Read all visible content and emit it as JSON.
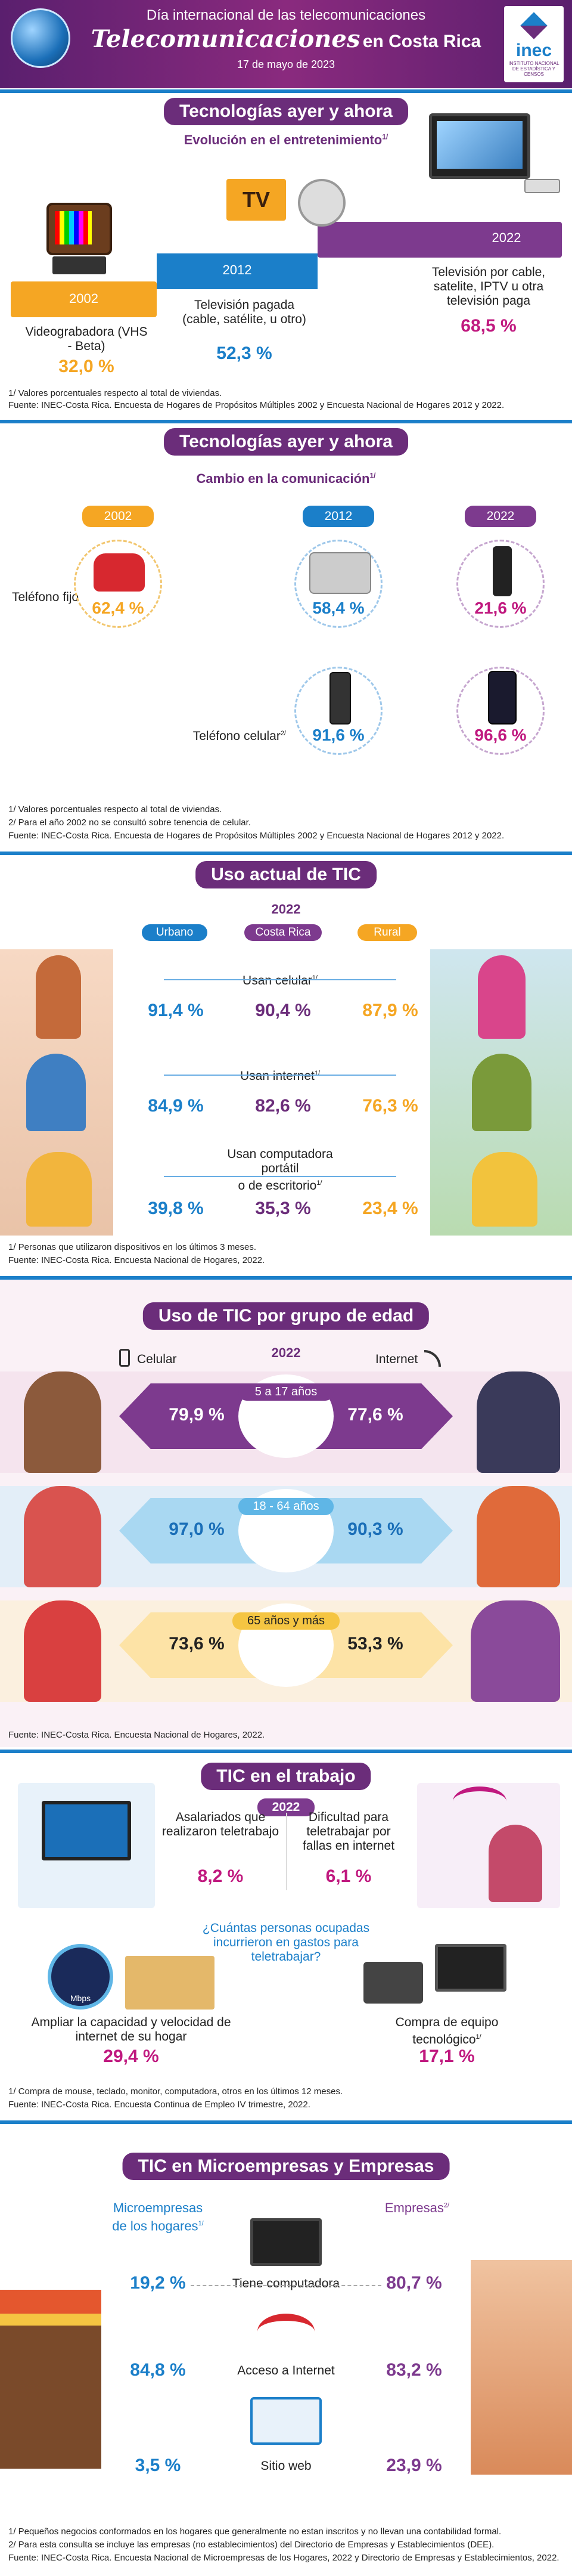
{
  "header": {
    "line1": "Día internacional de las telecomunicaciones",
    "line2": "Telecomunicaciones",
    "line2b": "en Costa Rica",
    "date": "17 de mayo de 2023",
    "logo": "inec",
    "logo_sub": "INSTITUTO NACIONAL DE ESTADÍSTICA Y CENSOS"
  },
  "s1": {
    "title": "Tecnologías ayer y ahora",
    "subtitle": "Evolución en el entretenimiento",
    "sup": "1/",
    "years": [
      "2002",
      "2012",
      "2022"
    ],
    "items": [
      {
        "label": "Videograbadora (VHS - Beta)",
        "value": "32,0 %"
      },
      {
        "label": "Televisión pagada (cable, satélite, u otro)",
        "value": "52,3 %"
      },
      {
        "label": "Televisión por cable, satelite, IPTV u otra televisión paga",
        "value": "68,5 %"
      }
    ],
    "foot1": "1/ Valores porcentuales respecto al total de viviendas.",
    "foot2": "Fuente: INEC-Costa Rica. Encuesta de Hogares de Propósitos Múltiples 2002 y Encuesta Nacional de Hogares 2012 y 2022."
  },
  "s2": {
    "title": "Tecnologías ayer y ahora",
    "subtitle": "Cambio en la comunicación",
    "sup": "1/",
    "years": [
      "2002",
      "2012",
      "2022"
    ],
    "row1_label": "Teléfono fijo",
    "row1": [
      "62,4 %",
      "58,4 %",
      "21,6 %"
    ],
    "row2_label": "Teléfono celular",
    "row2_sup": "2/",
    "row2": [
      "91,6 %",
      "96,6 %"
    ],
    "foot1": "1/ Valores porcentuales respecto al total de viviendas.",
    "foot2": "2/ Para el año 2002 no se consultó sobre tenencia de celular.",
    "foot3": "Fuente: INEC-Costa Rica. Encuesta de Hogares de Propósitos Múltiples 2002 y Encuesta Nacional de Hogares 2012 y 2022."
  },
  "s3": {
    "title": "Uso actual de TIC",
    "year": "2022",
    "cols": [
      "Urbano",
      "Costa Rica",
      "Rural"
    ],
    "sup": "1/",
    "rows": [
      {
        "label": "Usan celular",
        "values": [
          "91,4 %",
          "90,4 %",
          "87,9 %"
        ]
      },
      {
        "label": "Usan internet",
        "values": [
          "84,9 %",
          "82,6 %",
          "76,3 %"
        ]
      },
      {
        "label": "Usan computadora portátil o de escritorio",
        "label1": "Usan computadora",
        "label2": "portátil",
        "label3": "o de escritorio",
        "values": [
          "39,8 %",
          "35,3 %",
          "23,4 %"
        ]
      }
    ],
    "foot1": "1/ Personas que utilizaron dispositivos en los últimos 3 meses.",
    "foot2": "Fuente: INEC-Costa Rica. Encuesta Nacional de Hogares, 2022."
  },
  "s4": {
    "title": "Uso de TIC por grupo de edad",
    "year": "2022",
    "left": "Celular",
    "right": "Internet",
    "groups": [
      {
        "label": "5 a 17 años",
        "cel": "79,9 %",
        "int": "77,6 %"
      },
      {
        "label": "18 - 64 años",
        "cel": "97,0 %",
        "int": "90,3 %"
      },
      {
        "label": "65 años  y más",
        "cel": "73,6 %",
        "int": "53,3 %"
      }
    ],
    "foot": "Fuente: INEC-Costa Rica. Encuesta Nacional de Hogares, 2022."
  },
  "s5": {
    "title": "TIC en el trabajo",
    "year": "2022",
    "a_label": "Asalariados que realizaron teletrabajo",
    "a_value": "8,2 %",
    "b_label": "Dificultad para teletrabajar por fallas en internet",
    "b_value": "6,1 %",
    "question": "¿Cuántas personas ocupadas incurrieron en gastos para teletrabajar?",
    "c_label": "Ampliar la capacidad y velocidad de internet de su hogar",
    "c_value": "29,4 %",
    "d_label": "Compra de equipo tecnológico",
    "d_sup": "1/",
    "d_value": "17,1 %",
    "mbps": "Mbps",
    "foot1": "1/ Compra de mouse, teclado, monitor, computadora, otros en los últimos 12 meses.",
    "foot2": "Fuente: INEC-Costa Rica. Encuesta Continua de Empleo IV trimestre, 2022."
  },
  "s6": {
    "title": "TIC en Microempresas y Empresas",
    "left": "Microempresas de los hogares",
    "left_sup": "1/",
    "right": "Empresas",
    "right_sup": "2/",
    "rows": [
      {
        "label": "Tiene computadora",
        "left": "19,2 %",
        "right": "80,7 %"
      },
      {
        "label": "Acceso a Internet",
        "left": "84,8 %",
        "right": "83,2 %"
      },
      {
        "label": "Sitio web",
        "left": "3,5 %",
        "right": "23,9 %"
      }
    ],
    "foot1": "1/ Pequeños negocios conformados en los hogares que generalmente no estan inscritos y no llevan una contabilidad formal.",
    "foot2": "2/ Para esta consulta se incluye las empresas (no establecimientos) del Directorio de Empresas y Establecimientos (DEE).",
    "foot3": "Fuente: INEC-Costa Rica. Encuesta Nacional de Microempresas de los Hogares, 2022 y Directorio de Empresas y Establecimientos, 2022."
  },
  "colors": {
    "purple": "#6b2d7a",
    "blue": "#1b7fc9",
    "orange": "#f5a623",
    "pink": "#c0197f"
  }
}
